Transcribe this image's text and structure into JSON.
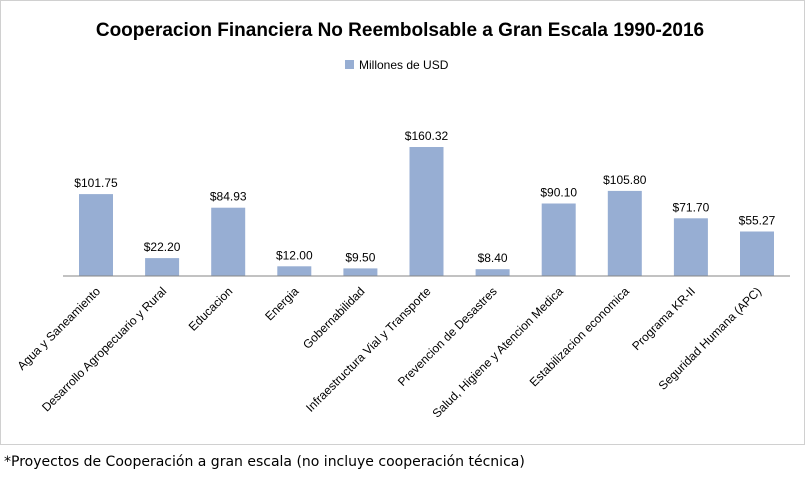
{
  "chart_data": {
    "type": "bar",
    "title": "Cooperacion Financiera No Reembolsable a Gran Escala 1990-2016",
    "xlabel": "",
    "ylabel": "",
    "ylim": [
      0,
      175
    ],
    "grid": false,
    "legend_position": "top",
    "value_prefix": "$",
    "categories": [
      "Agua y Saneamiento",
      "Desarrollo Agropecuario y Rural",
      "Educacion",
      "Energia",
      "Gobernabilidad",
      "Infraestructura Vial y Transporte",
      "Prevencion de Desastres",
      "Salud, Higiene y Atencion Medica",
      "Estabilizacion economica",
      "Programa KR-II",
      "Seguridad Humana (APC)"
    ],
    "series": [
      {
        "name": "Millones de USD",
        "color": "#97aed3",
        "values": [
          101.75,
          22.2,
          84.93,
          12.0,
          9.5,
          160.32,
          8.4,
          90.1,
          105.8,
          71.7,
          55.27
        ],
        "labels": [
          "$101.75",
          "$22.20",
          "$84.93",
          "$12.00",
          "$9.50",
          "$160.32",
          "$8.40",
          "$90.10",
          "$105.80",
          "$71.70",
          "$55.27"
        ]
      }
    ]
  },
  "footnote": "*Proyectos de Cooperación a gran escala (no incluye cooperación técnica)"
}
